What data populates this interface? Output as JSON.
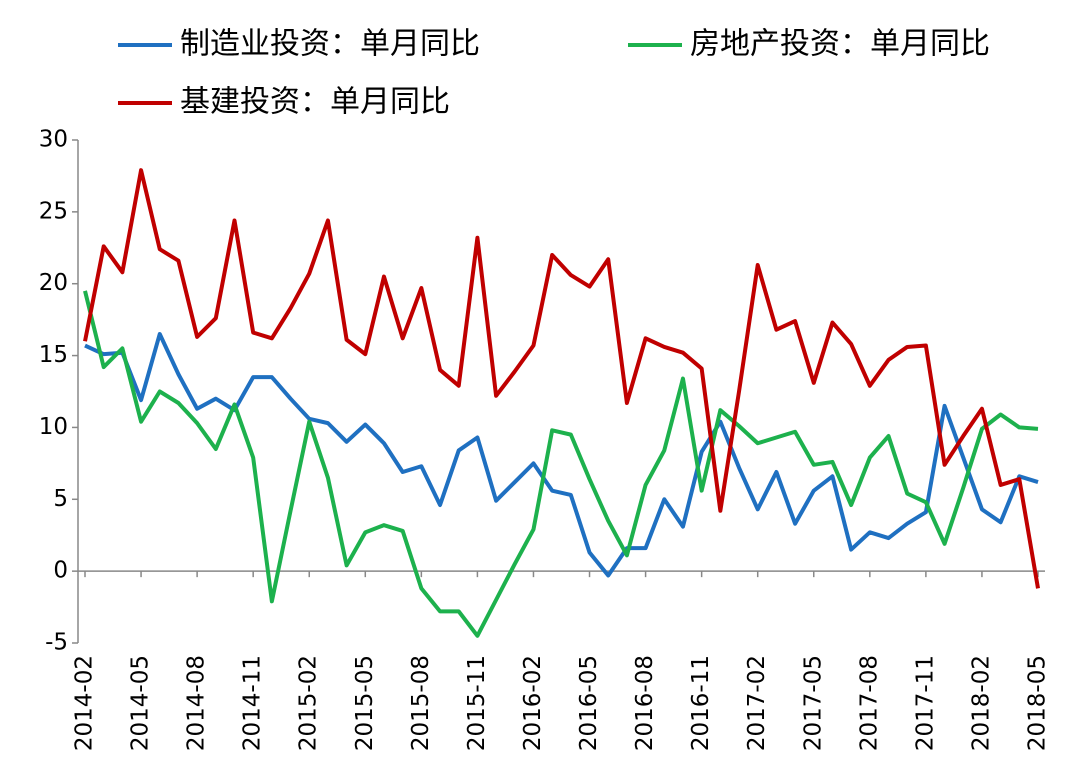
{
  "chart_data": {
    "type": "line",
    "categories": [
      "2014-02",
      null,
      null,
      "2014-05",
      null,
      null,
      "2014-08",
      null,
      null,
      "2014-11",
      null,
      null,
      "2015-02",
      null,
      null,
      "2015-05",
      null,
      null,
      "2015-08",
      null,
      null,
      "2015-11",
      null,
      null,
      "2016-02",
      null,
      null,
      "2016-05",
      null,
      null,
      "2016-08",
      null,
      null,
      "2016-11",
      null,
      null,
      "2017-02",
      null,
      null,
      "2017-05",
      null,
      null,
      "2017-08",
      null,
      null,
      "2017-11",
      null,
      null,
      "2018-02",
      null,
      null,
      "2018-05"
    ],
    "series": [
      {
        "name": "制造业投资：单月同比",
        "color": "#1f70c1",
        "values": [
          15.7,
          15.1,
          15.2,
          11.9,
          16.5,
          13.7,
          11.3,
          12.0,
          11.2,
          13.5,
          13.5,
          12.0,
          10.6,
          10.3,
          9.0,
          10.2,
          8.9,
          6.9,
          7.3,
          4.6,
          8.4,
          9.3,
          4.9,
          6.2,
          7.5,
          5.6,
          5.3,
          1.3,
          -0.3,
          1.6,
          1.6,
          5.0,
          3.1,
          8.3,
          10.4,
          7.2,
          4.3,
          6.9,
          3.3,
          5.6,
          6.6,
          1.5,
          2.7,
          2.3,
          3.3,
          4.1,
          11.5,
          7.9,
          4.3,
          3.4,
          6.6,
          6.2
        ]
      },
      {
        "name": "房地产投资：单月同比",
        "color": "#1db14d",
        "values": [
          19.5,
          14.2,
          15.5,
          10.4,
          12.5,
          11.7,
          10.3,
          8.5,
          11.6,
          7.9,
          -2.1,
          4.2,
          10.4,
          6.5,
          0.4,
          2.7,
          3.2,
          2.8,
          -1.2,
          -2.8,
          -2.8,
          -4.5,
          -2.0,
          0.5,
          2.9,
          9.8,
          9.5,
          6.4,
          3.5,
          1.1,
          6.0,
          8.4,
          13.4,
          5.6,
          11.2,
          10.1,
          8.9,
          9.3,
          9.7,
          7.4,
          7.6,
          4.6,
          7.9,
          9.4,
          5.4,
          4.8,
          1.9,
          5.8,
          9.9,
          10.9,
          10.0,
          9.9
        ]
      },
      {
        "name": "基建投资：单月同比",
        "color": "#c00000",
        "values": [
          16.0,
          22.6,
          20.8,
          27.9,
          22.4,
          21.6,
          16.3,
          17.6,
          24.4,
          16.6,
          16.2,
          18.3,
          20.7,
          24.4,
          16.1,
          15.1,
          20.5,
          16.2,
          19.7,
          14.0,
          12.9,
          23.2,
          12.2,
          13.9,
          15.7,
          22.0,
          20.6,
          19.8,
          21.7,
          11.7,
          16.2,
          15.6,
          15.2,
          14.1,
          4.2,
          12.5,
          21.3,
          16.8,
          17.4,
          13.1,
          17.3,
          15.8,
          12.9,
          14.7,
          15.6,
          15.7,
          7.4,
          9.4,
          11.3,
          6.0,
          6.4,
          -1.2
        ]
      }
    ],
    "ylim": [
      -5,
      30
    ],
    "yticks": [
      -5,
      0,
      5,
      10,
      15,
      20,
      25,
      30
    ],
    "legend": "top",
    "grid": false
  }
}
